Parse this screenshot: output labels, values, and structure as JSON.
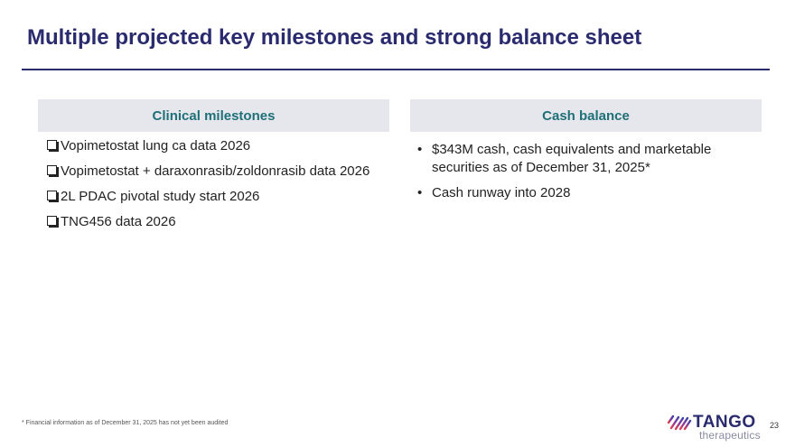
{
  "slide": {
    "title": "Multiple projected key milestones and strong balance sheet",
    "page_number": "23",
    "footnote": "* Financial information as of December 31, 2025 has not yet been audited"
  },
  "left_column": {
    "header": "Clinical milestones",
    "items": [
      "Vopimetostat lung ca data 2026",
      "Vopimetostat + daraxonrasib/zoldonrasib data 2026",
      "2L PDAC pivotal study start 2026",
      "TNG456 data 2026"
    ]
  },
  "right_column": {
    "header": "Cash balance",
    "items": [
      "$343M cash, cash equivalents and marketable securities as of December 31, 2025*",
      "Cash runway into 2028"
    ]
  },
  "logo": {
    "word": "TANGO",
    "sub": "therapeutics"
  },
  "colors": {
    "title": "#2a2a6e",
    "header_text": "#1f6f78",
    "header_bg": "#e6e7ec",
    "logo_gradient": [
      "#e23b4c",
      "#8b3a9e",
      "#3a3ea8"
    ]
  }
}
